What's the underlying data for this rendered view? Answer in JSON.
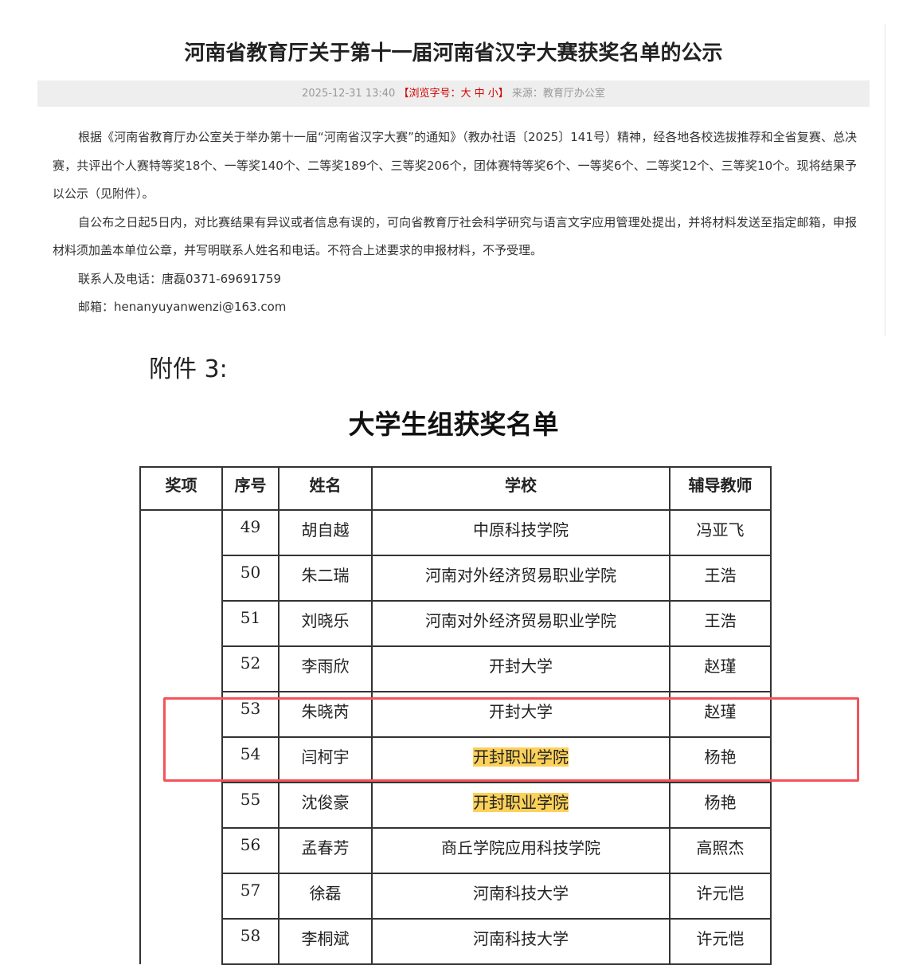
{
  "article": {
    "title": "河南省教育厅关于第十一届河南省汉字大赛获奖名单的公示",
    "datetime": "2025-12-31 13:40",
    "font_size_label": "【浏览字号：大 中 小】",
    "source": "来源：教育厅办公室",
    "paragraphs": [
      "根据《河南省教育厅办公室关于举办第十一届“河南省汉字大赛”的通知》（教办社语〔2025〕141号）精神，经各地各校选拔推荐和全省复赛、总决赛，共评出个人赛特等奖18个、一等奖140个、二等奖189个、三等奖206个，团体赛特等奖6个、一等奖6个、二等奖12个、三等奖10个。现将结果予以公示（见附件）。",
      "自公布之日起5日内，对比赛结果有异议或者信息有误的，可向省教育厅社会科学研究与语言文字应用管理处提出，并将材料发送至指定邮箱，申报材料须加盖本单位公章，并写明联系人姓名和电话。不符合上述要求的申报材料，不予受理。",
      "联系人及电话：唐磊0371-69691759",
      "邮箱：henanyuyanwenzi@163.com"
    ]
  },
  "attachment": {
    "label": "附件 3:",
    "title": "大学生组获奖名单",
    "headers": [
      "奖项",
      "序号",
      "姓名",
      "学校",
      "辅导教师"
    ],
    "rows": [
      {
        "no": "49",
        "name": "胡自越",
        "school": "中原科技学院",
        "teacher": "冯亚飞"
      },
      {
        "no": "50",
        "name": "朱二瑞",
        "school": "河南对外经济贸易职业学院",
        "teacher": "王浩"
      },
      {
        "no": "51",
        "name": "刘晓乐",
        "school": "河南对外经济贸易职业学院",
        "teacher": "王浩"
      },
      {
        "no": "52",
        "name": "李雨欣",
        "school": "开封大学",
        "teacher": "赵瑾"
      },
      {
        "no": "53",
        "name": "朱晓芮",
        "school": "开封大学",
        "teacher": "赵瑾"
      },
      {
        "no": "54",
        "name": "闫柯宇",
        "school": "开封职业学院",
        "teacher": "杨艳"
      },
      {
        "no": "55",
        "name": "沈俊豪",
        "school": "开封职业学院",
        "teacher": "杨艳"
      },
      {
        "no": "56",
        "name": "孟春芳",
        "school": "商丘学院应用科技学院",
        "teacher": "高照杰"
      },
      {
        "no": "57",
        "name": "徐磊",
        "school": "河南科技大学",
        "teacher": "许元恺"
      },
      {
        "no": "58",
        "name": "李桐斌",
        "school": "河南科技大学",
        "teacher": "许元恺"
      }
    ],
    "highlight_color": "#fcd15a",
    "annotation_box_color": "#f2545b"
  }
}
